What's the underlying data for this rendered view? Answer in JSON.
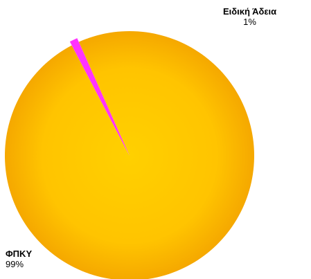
{
  "chart_data": {
    "type": "pie",
    "title": "",
    "slices": [
      {
        "label": "ΦΠΚΥ",
        "value": 99,
        "value_label": "99%",
        "color": "#FFC400"
      },
      {
        "label": "Ειδική Άδεια",
        "value": 1,
        "value_label": "1%",
        "color": "#FF33FF"
      }
    ],
    "legend": "none"
  }
}
